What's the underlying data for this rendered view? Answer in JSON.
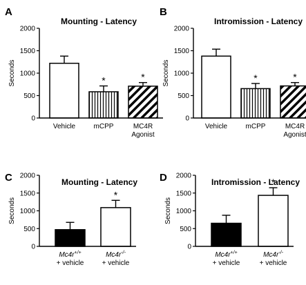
{
  "chart_data": [
    {
      "type": "bar",
      "panel": "A",
      "title": "Mounting - Latency",
      "ylabel": "Seconds",
      "ylim": [
        0,
        2000
      ],
      "yticks": [
        0,
        500,
        1000,
        1500,
        2000
      ],
      "categories": [
        [
          "Vehicle"
        ],
        [
          "mCPP"
        ],
        [
          "MC4R",
          "Agonist"
        ]
      ],
      "values": [
        1220,
        585,
        710
      ],
      "errors": [
        160,
        130,
        80
      ],
      "fills": [
        "white",
        "vertical",
        "diagonal"
      ],
      "significance": [
        "",
        "*",
        "*"
      ]
    },
    {
      "type": "bar",
      "panel": "B",
      "title": "Intromission - Latency",
      "ylabel": "Seconds",
      "ylim": [
        0,
        2000
      ],
      "yticks": [
        0,
        500,
        1000,
        1500,
        2000
      ],
      "categories": [
        [
          "Vehicle"
        ],
        [
          "mCPP"
        ],
        [
          "MC4R",
          "Agonist"
        ]
      ],
      "values": [
        1380,
        655,
        715
      ],
      "errors": [
        155,
        115,
        75
      ],
      "fills": [
        "white",
        "vertical",
        "diagonal"
      ],
      "significance": [
        "",
        "*",
        "*"
      ]
    },
    {
      "type": "bar",
      "panel": "C",
      "title": "Mounting - Latency",
      "ylabel": "Seconds",
      "ylim": [
        0,
        2000
      ],
      "yticks": [
        0,
        500,
        1000,
        1500,
        2000
      ],
      "categories": [
        [
          {
            "base": "Mc4r",
            "sup": "+/+"
          },
          "+ vehicle"
        ],
        [
          {
            "base": "Mc4r",
            "sup": "-/-"
          },
          "+ vehicle"
        ]
      ],
      "values": [
        470,
        1090
      ],
      "errors": [
        205,
        205
      ],
      "fills": [
        "black",
        "white"
      ],
      "significance": [
        "",
        "*"
      ]
    },
    {
      "type": "bar",
      "panel": "D",
      "title": "Intromission - Latency",
      "ylabel": "Seconds",
      "ylim": [
        0,
        2000
      ],
      "yticks": [
        0,
        500,
        1000,
        1500,
        2000
      ],
      "categories": [
        [
          {
            "base": "Mc4r",
            "sup": "+/+"
          },
          "+ vehicle"
        ],
        [
          {
            "base": "Mc4r",
            "sup": "-/-"
          },
          "+ vehicle"
        ]
      ],
      "values": [
        650,
        1435
      ],
      "errors": [
        225,
        215
      ],
      "fills": [
        "black",
        "white"
      ],
      "significance": [
        "",
        "*"
      ]
    }
  ]
}
